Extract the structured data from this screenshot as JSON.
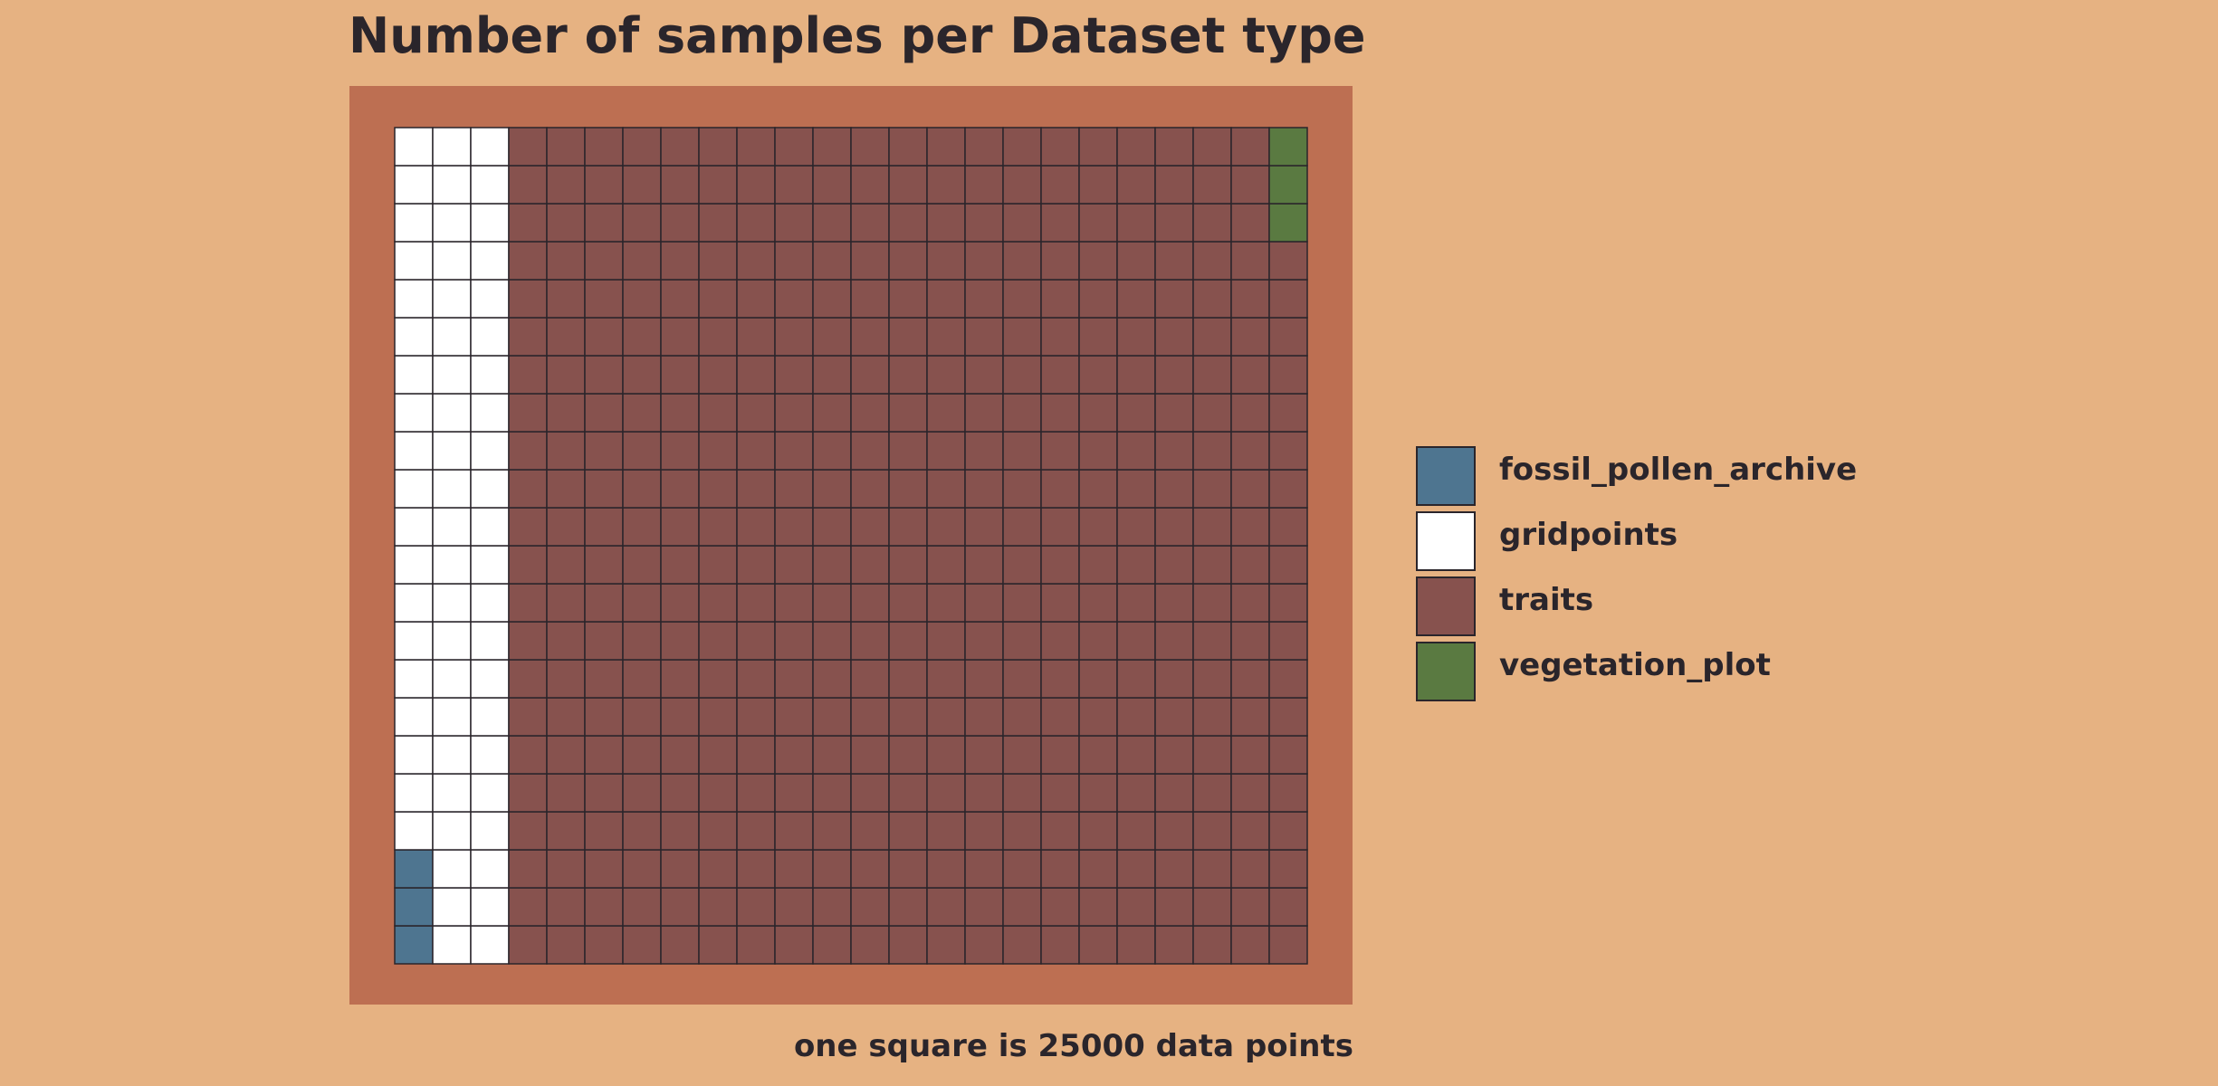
{
  "chart_data": {
    "type": "waffle",
    "title": "Number of samples per Dataset type",
    "caption": "one square is 25000 data points",
    "grid": {
      "columns": 24,
      "rows": 22
    },
    "categories": [
      "fossil_pollen_archive",
      "gridpoints",
      "traits",
      "vegetation_plot"
    ],
    "series": [
      {
        "name": "fossil_pollen_archive",
        "squares": 3,
        "color": "#4e7590"
      },
      {
        "name": "gridpoints",
        "squares": 63,
        "color": "#ffffff"
      },
      {
        "name": "traits",
        "squares": 459,
        "color": "#87524e"
      },
      {
        "name": "vegetation_plot",
        "squares": 3,
        "color": "#5a7a41"
      }
    ],
    "legend_position": "right"
  },
  "colors": {
    "background": "#e6b282",
    "panel": "#bd6f52",
    "cell_border": "#2a252b"
  }
}
